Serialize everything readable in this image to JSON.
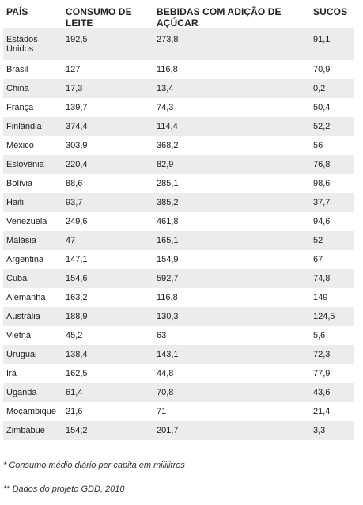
{
  "table": {
    "headers": [
      "PAÍS",
      "CONSUMO DE LEITE",
      "BEBIDAS COM ADIÇÃO DE AÇÚCAR",
      "SUCOS"
    ],
    "rows": [
      [
        "Estados Unidos",
        "192,5",
        "273,8",
        "91,1"
      ],
      [
        "Brasil",
        "127",
        "116,8",
        "70,9"
      ],
      [
        "China",
        "17,3",
        "13,4",
        "0,2"
      ],
      [
        "França",
        "139,7",
        "74,3",
        "50,4"
      ],
      [
        "Finlândia",
        "374,4",
        "114,4",
        "52,2"
      ],
      [
        "México",
        "303,9",
        "368,2",
        "56"
      ],
      [
        "Eslovênia",
        "220,4",
        "82,9",
        "76,8"
      ],
      [
        "Bolívia",
        "88,6",
        "285,1",
        "98,6"
      ],
      [
        "Haiti",
        "93,7",
        "385,2",
        "37,7"
      ],
      [
        "Venezuela",
        "249,6",
        "461,8",
        "94,6"
      ],
      [
        "Malásia",
        "47",
        "165,1",
        "52"
      ],
      [
        "Argentina",
        "147,1",
        "154,9",
        "67"
      ],
      [
        "Cuba",
        "154,6",
        "592,7",
        "74,8"
      ],
      [
        "Alemanha",
        "163,2",
        "116,8",
        "149"
      ],
      [
        "Austrália",
        "188,9",
        "130,3",
        "124,5"
      ],
      [
        "Vietnã",
        "45,2",
        "63",
        "5,6"
      ],
      [
        "Uruguai",
        "138,4",
        "143,1",
        "72,3"
      ],
      [
        "Irã",
        "162,5",
        "44,8",
        "77,9"
      ],
      [
        "Uganda",
        "61,4",
        "70,8",
        "43,6"
      ],
      [
        "Moçambique",
        "21,6",
        "71",
        "21,4"
      ],
      [
        "Zimbábue",
        "154,2",
        "201,7",
        "3,3"
      ]
    ]
  },
  "footnotes": {
    "note1": "* Consumo médio diário per capita em mililitros",
    "note2": "** Dados do projeto GDD, 2010"
  },
  "colors": {
    "stripe": "#ececec",
    "text": "#222222"
  }
}
